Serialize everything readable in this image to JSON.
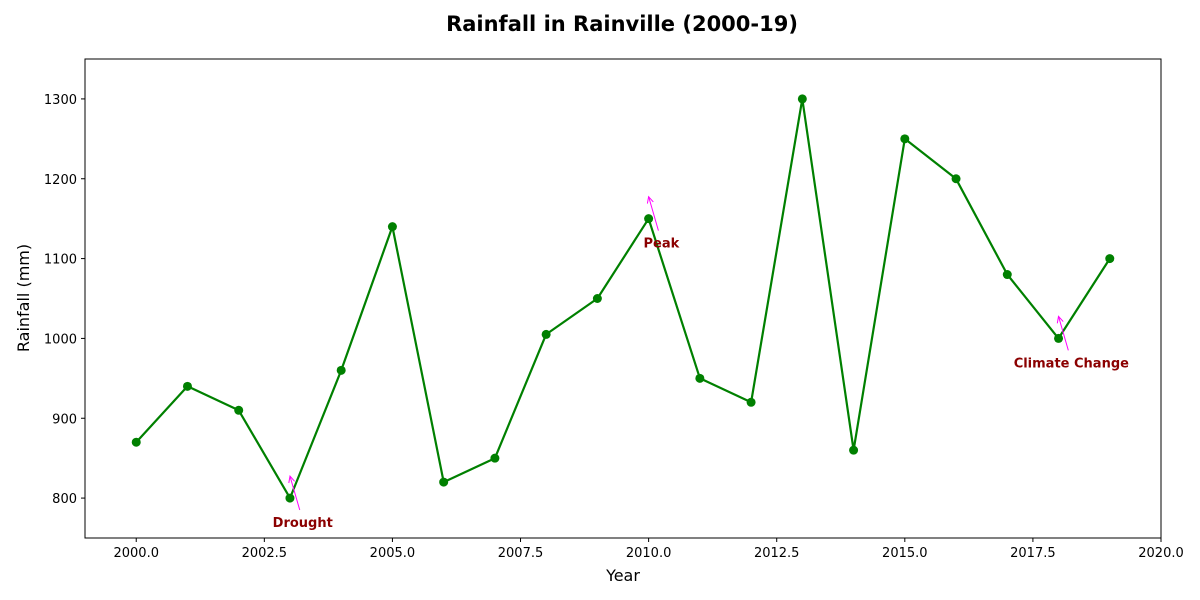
{
  "colors": {
    "line": "#008000",
    "marker": "#008000",
    "annotation_text": "#8b0000",
    "annotation_arrow": "#ff00ff",
    "axes": "#000000",
    "background": "#ffffff"
  },
  "chart_data": {
    "type": "line",
    "title": "Rainfall in Rainville (2000-19)",
    "xlabel": "Year",
    "ylabel": "Rainfall (mm)",
    "xlim": [
      1999,
      2020
    ],
    "ylim": [
      750,
      1350
    ],
    "xticks": [
      2000,
      2002.5,
      2005,
      2007.5,
      2010,
      2012.5,
      2015,
      2017.5,
      2020
    ],
    "xtick_labels": [
      "2000.0",
      "2002.5",
      "2005.0",
      "2007.5",
      "2010.0",
      "2012.5",
      "2015.0",
      "2017.5",
      "2020.0"
    ],
    "yticks": [
      800,
      900,
      1000,
      1100,
      1200,
      1300
    ],
    "ytick_labels": [
      "800",
      "900",
      "1000",
      "1100",
      "1200",
      "1300"
    ],
    "grid": false,
    "series": [
      {
        "x": [
          2000,
          2001,
          2002,
          2003,
          2004,
          2005,
          2006,
          2007,
          2008,
          2009,
          2010,
          2011,
          2012,
          2013,
          2014,
          2015,
          2016,
          2017,
          2018,
          2019
        ],
        "y": [
          870,
          940,
          910,
          800,
          960,
          1140,
          820,
          850,
          1005,
          1050,
          1150,
          950,
          920,
          1300,
          860,
          1250,
          1200,
          1080,
          1000,
          1100
        ],
        "marker": "circle"
      }
    ],
    "annotations": [
      {
        "text": "Drought",
        "point": [
          2003,
          800
        ],
        "text_at": [
          2003.25,
          770
        ]
      },
      {
        "text": "Peak",
        "point": [
          2010,
          1150
        ],
        "text_at": [
          2010.25,
          1120
        ]
      },
      {
        "text": "Climate Change",
        "point": [
          2018,
          1000
        ],
        "text_at": [
          2018.25,
          970
        ]
      }
    ]
  }
}
